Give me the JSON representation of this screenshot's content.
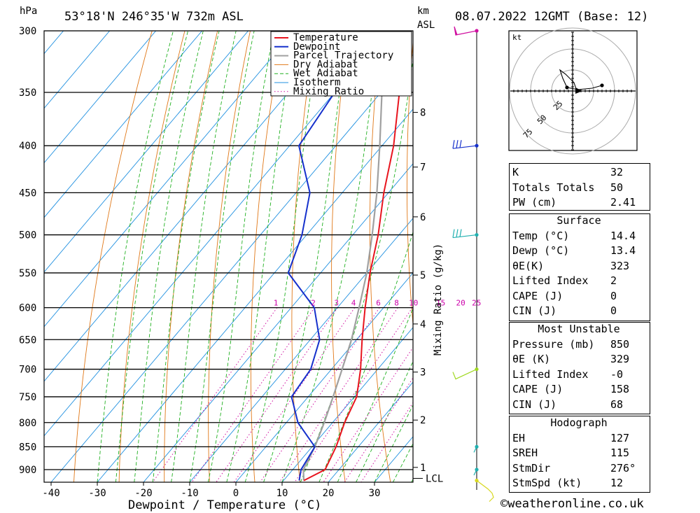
{
  "header": {
    "location": "53°18'N  246°35'W  732m  ASL",
    "datetime": "08.07.2022  12GMT  (Base: 12)",
    "unit_hpa": "hPa",
    "unit_km": "km",
    "unit_asl": "ASL"
  },
  "chart_data": {
    "type": "skew-t",
    "xlabel": "Dewpoint / Temperature (°C)",
    "ylabel_right": "Mixing Ratio (g/kg)",
    "pressure_levels": [
      300,
      350,
      400,
      450,
      500,
      550,
      600,
      650,
      700,
      750,
      800,
      850,
      900
    ],
    "temp_ticks": [
      -40,
      -30,
      -20,
      -10,
      0,
      10,
      20,
      30
    ],
    "km_ticks": [
      {
        "label": "8",
        "p": 368
      },
      {
        "label": "7",
        "p": 422
      },
      {
        "label": "6",
        "p": 478
      },
      {
        "label": "5",
        "p": 553
      },
      {
        "label": "4",
        "p": 625
      },
      {
        "label": "3",
        "p": 705
      },
      {
        "label": "2",
        "p": 795
      },
      {
        "label": "1",
        "p": 895
      }
    ],
    "lcl_label": "LCL",
    "lcl_pressure": 920,
    "mixing_ratio_labels": [
      "1",
      "2",
      "3",
      "4",
      "6",
      "8",
      "10",
      "15",
      "20",
      "25"
    ],
    "legend": [
      "Temperature",
      "Dewpoint",
      "Parcel Trajectory",
      "Dry Adiabat",
      "Wet Adiabat",
      "Isotherm",
      "Mixing Ratio"
    ],
    "colors": {
      "temperature": "#e8141e",
      "dewpoint": "#1530cc",
      "parcel": "#a0a0a0",
      "dry_adiabat": "#e07818",
      "wet_adiabat": "#20b020",
      "isotherm": "#2090e0",
      "mixing_ratio": "#d010a0"
    },
    "temperature": [
      {
        "p": 925,
        "t": 14.4
      },
      {
        "p": 900,
        "t": 17.0
      },
      {
        "p": 850,
        "t": 15.2
      },
      {
        "p": 800,
        "t": 12.6
      },
      {
        "p": 750,
        "t": 10.5
      },
      {
        "p": 700,
        "t": 6.3
      },
      {
        "p": 650,
        "t": 1.2
      },
      {
        "p": 600,
        "t": -4.0
      },
      {
        "p": 550,
        "t": -9.3
      },
      {
        "p": 500,
        "t": -14.5
      },
      {
        "p": 450,
        "t": -21.0
      },
      {
        "p": 400,
        "t": -27.5
      },
      {
        "p": 350,
        "t": -36.0
      },
      {
        "p": 300,
        "t": -45.0
      }
    ],
    "dewpoint": [
      {
        "p": 925,
        "t": 13.4
      },
      {
        "p": 900,
        "t": 11.8
      },
      {
        "p": 850,
        "t": 10.6
      },
      {
        "p": 800,
        "t": 2.5
      },
      {
        "p": 750,
        "t": -3.6
      },
      {
        "p": 700,
        "t": -4.5
      },
      {
        "p": 650,
        "t": -8.0
      },
      {
        "p": 600,
        "t": -15.0
      },
      {
        "p": 550,
        "t": -27.0
      },
      {
        "p": 500,
        "t": -31.0
      },
      {
        "p": 450,
        "t": -37.0
      },
      {
        "p": 400,
        "t": -48.0
      },
      {
        "p": 350,
        "t": -50.0
      },
      {
        "p": 300,
        "t": -58.0
      }
    ],
    "parcel": [
      {
        "p": 925,
        "t": 14.4
      },
      {
        "p": 900,
        "t": 12.3
      },
      {
        "p": 850,
        "t": 10.6
      },
      {
        "p": 800,
        "t": 8.2
      },
      {
        "p": 750,
        "t": 5.4
      },
      {
        "p": 700,
        "t": 2.3
      },
      {
        "p": 650,
        "t": -1.1
      },
      {
        "p": 600,
        "t": -5.3
      },
      {
        "p": 550,
        "t": -10.0
      },
      {
        "p": 500,
        "t": -15.8
      },
      {
        "p": 450,
        "t": -22.5
      },
      {
        "p": 400,
        "t": -30.5
      },
      {
        "p": 350,
        "t": -39.8
      },
      {
        "p": 300,
        "t": -50.5
      }
    ],
    "hodograph": {
      "unit": "kt",
      "rings": [
        "25",
        "50",
        "75"
      ]
    },
    "wind_barbs": [
      {
        "p": 300,
        "color": "#d010a0"
      },
      {
        "p": 400,
        "color": "#1530cc"
      },
      {
        "p": 500,
        "color": "#20b0b0"
      },
      {
        "p": 700,
        "color": "#a0d820"
      },
      {
        "p": 850,
        "color": "#20b0b0"
      },
      {
        "p": 900,
        "color": "#20b0b0"
      },
      {
        "p": 925,
        "color": "#d8d820"
      }
    ]
  },
  "indices": {
    "top": [
      {
        "label": "K",
        "value": "32"
      },
      {
        "label": "Totals Totals",
        "value": "50"
      },
      {
        "label": "PW (cm)",
        "value": "2.41"
      }
    ],
    "surface_title": "Surface",
    "surface": [
      {
        "label": "Temp (°C)",
        "value": "14.4"
      },
      {
        "label": "Dewp (°C)",
        "value": "13.4"
      },
      {
        "label": "θE(K)",
        "value": "323"
      },
      {
        "label": "Lifted Index",
        "value": "2"
      },
      {
        "label": "CAPE (J)",
        "value": "0"
      },
      {
        "label": "CIN (J)",
        "value": "0"
      }
    ],
    "mu_title": "Most Unstable",
    "mu": [
      {
        "label": "Pressure (mb)",
        "value": "850"
      },
      {
        "label": "θE (K)",
        "value": "329"
      },
      {
        "label": "Lifted Index",
        "value": "-0"
      },
      {
        "label": "CAPE (J)",
        "value": "158"
      },
      {
        "label": "CIN (J)",
        "value": "68"
      }
    ],
    "hodo_title": "Hodograph",
    "hodo": [
      {
        "label": "EH",
        "value": "127"
      },
      {
        "label": "SREH",
        "value": "115"
      },
      {
        "label": "StmDir",
        "value": "276°"
      },
      {
        "label": "StmSpd (kt)",
        "value": "12"
      }
    ]
  },
  "footer": {
    "copyright": "©weatheronline.co.uk"
  }
}
